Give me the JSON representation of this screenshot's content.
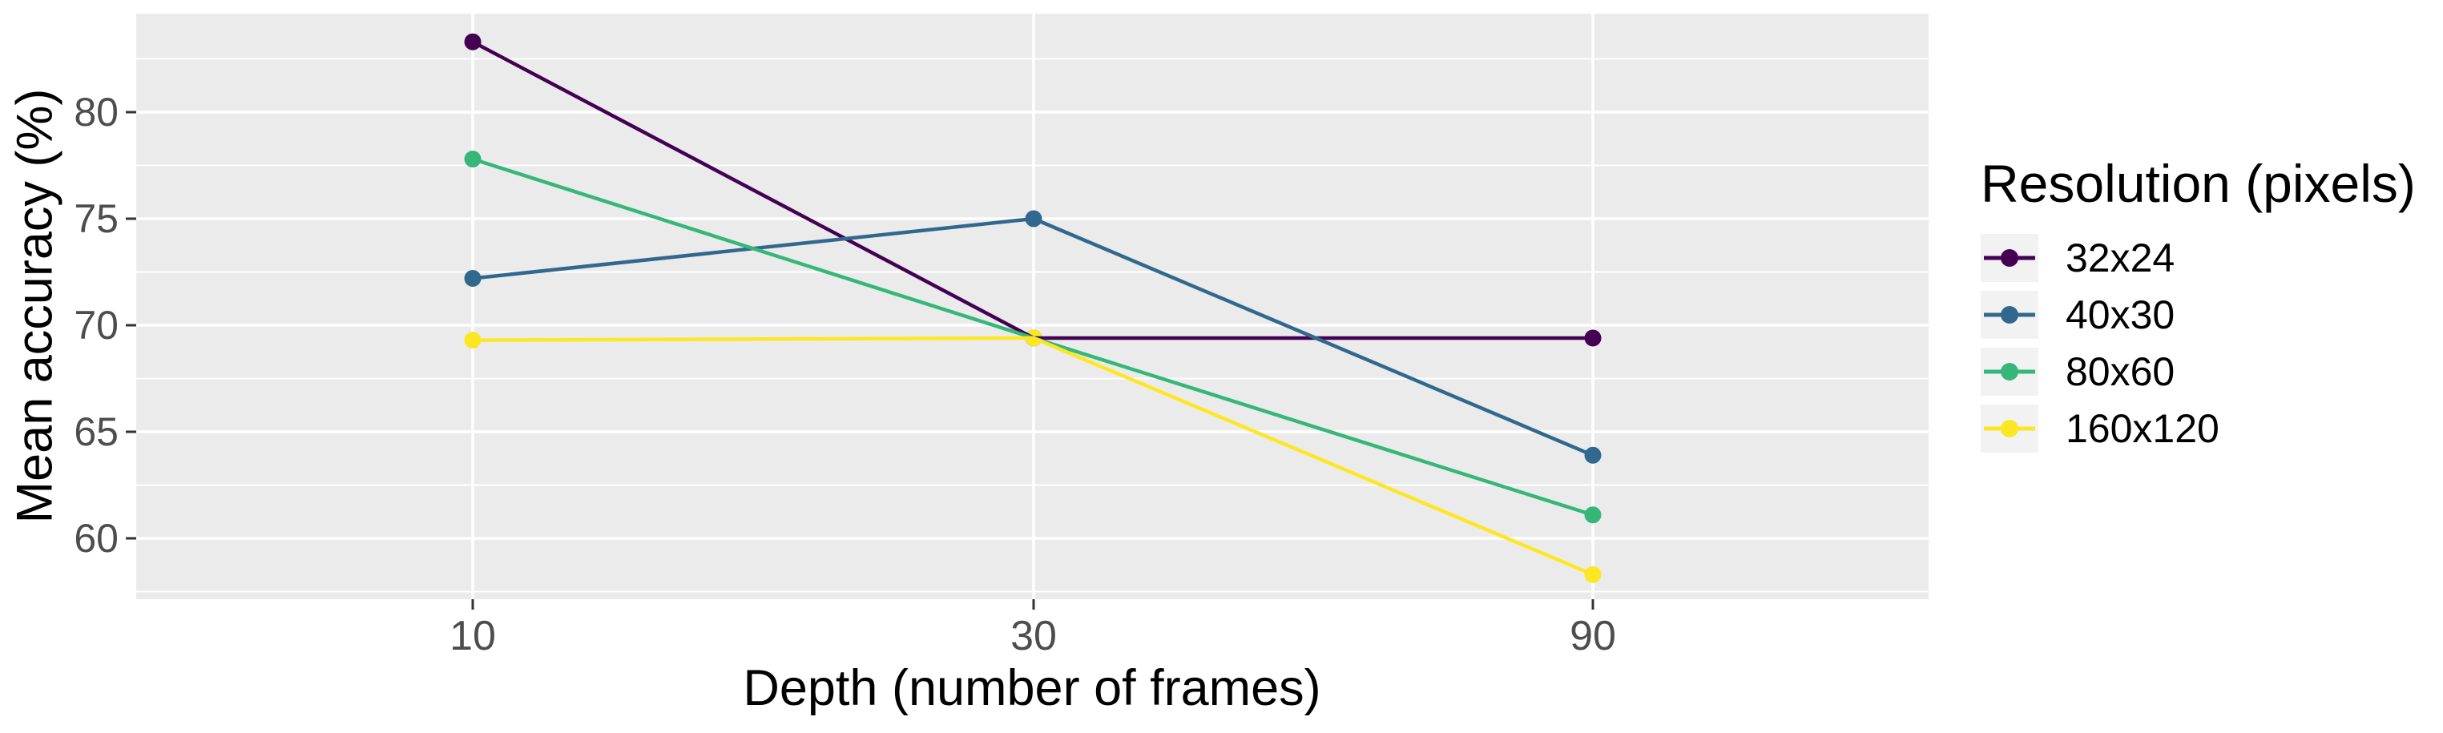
{
  "figure": {
    "background": "#ffffff",
    "panel_fill": "#ebebeb",
    "gridline_color": "#ffffff",
    "tick_mark_color": "#333333",
    "tick_label_color": "#4d4d4d",
    "title_text_color": "#000000"
  },
  "chart_data": {
    "type": "line",
    "title": "",
    "xlabel": "Depth (number of frames)",
    "ylabel": "Mean accuracy (%)",
    "x_values": [
      10,
      30,
      90
    ],
    "x_tick_labels": [
      "10",
      "30",
      "90"
    ],
    "x_scale": "log-like: 10, 30, 90 equally spaced",
    "y_tick_labels": [
      "60",
      "65",
      "70",
      "75",
      "80"
    ],
    "y_major_gridlines": [
      60,
      65,
      70,
      75,
      80
    ],
    "y_minor_gridlines": [
      57.5,
      62.5,
      67.5,
      72.5,
      77.5,
      82.5
    ],
    "y_axis_range_approx": [
      57.1,
      84.6
    ],
    "grid": "white major+minor horizontal lines on grey panel; vertical lines only at x breaks",
    "legend_title": "Resolution (pixels)",
    "legend_position": "right",
    "series": [
      {
        "name": "32x24",
        "color": "#440154",
        "values": [
          83.3,
          69.4,
          69.4
        ]
      },
      {
        "name": "40x30",
        "color": "#31688E",
        "values": [
          72.2,
          75.0,
          63.9
        ]
      },
      {
        "name": "80x60",
        "color": "#35B779",
        "values": [
          77.8,
          69.4,
          61.1
        ]
      },
      {
        "name": "160x120",
        "color": "#FDE725",
        "values": [
          69.3,
          69.4,
          58.3
        ]
      }
    ]
  }
}
